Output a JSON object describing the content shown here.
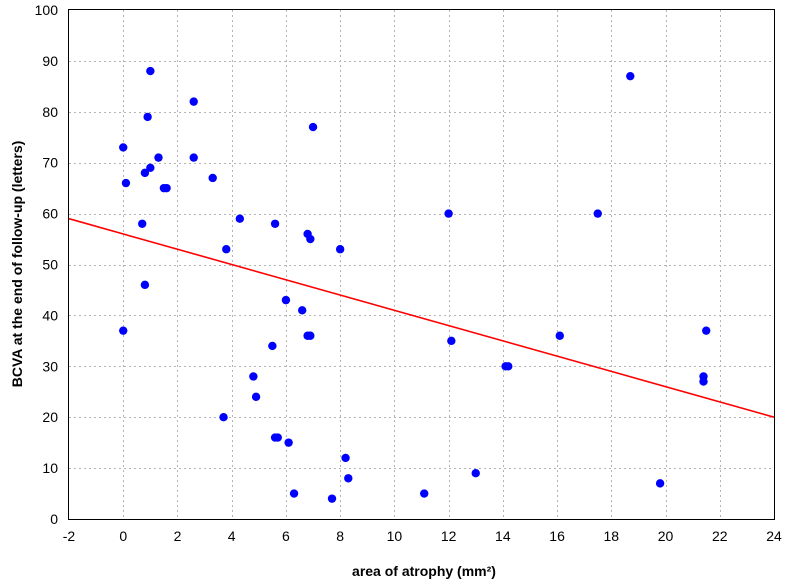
{
  "chart_data": {
    "type": "scatter",
    "xlabel": "area of atrophy (mm²)",
    "ylabel": "BCVA at the end of follow-up (letters)",
    "xlim": [
      -2,
      24
    ],
    "ylim": [
      0,
      100
    ],
    "x_ticks": [
      -2,
      0,
      2,
      4,
      6,
      8,
      10,
      12,
      14,
      16,
      18,
      20,
      22,
      24
    ],
    "y_ticks": [
      0,
      10,
      20,
      30,
      40,
      50,
      60,
      70,
      80,
      90,
      100
    ],
    "grid": true,
    "point_color": "#0000ff",
    "trend_color": "#ff0000",
    "points": [
      {
        "x": 0.0,
        "y": 73
      },
      {
        "x": 0.1,
        "y": 66
      },
      {
        "x": 0.0,
        "y": 37
      },
      {
        "x": 0.7,
        "y": 58
      },
      {
        "x": 0.8,
        "y": 68
      },
      {
        "x": 0.9,
        "y": 79
      },
      {
        "x": 1.0,
        "y": 88
      },
      {
        "x": 1.0,
        "y": 69
      },
      {
        "x": 0.8,
        "y": 46
      },
      {
        "x": 1.3,
        "y": 71
      },
      {
        "x": 1.5,
        "y": 65
      },
      {
        "x": 1.6,
        "y": 65
      },
      {
        "x": 2.6,
        "y": 82
      },
      {
        "x": 2.6,
        "y": 71
      },
      {
        "x": 3.3,
        "y": 67
      },
      {
        "x": 3.8,
        "y": 53
      },
      {
        "x": 4.3,
        "y": 59
      },
      {
        "x": 3.7,
        "y": 20
      },
      {
        "x": 4.8,
        "y": 28
      },
      {
        "x": 4.9,
        "y": 24
      },
      {
        "x": 5.5,
        "y": 34
      },
      {
        "x": 5.6,
        "y": 58
      },
      {
        "x": 5.6,
        "y": 16
      },
      {
        "x": 5.7,
        "y": 16
      },
      {
        "x": 6.0,
        "y": 43
      },
      {
        "x": 6.1,
        "y": 15
      },
      {
        "x": 6.3,
        "y": 5
      },
      {
        "x": 6.6,
        "y": 41
      },
      {
        "x": 6.8,
        "y": 56
      },
      {
        "x": 6.9,
        "y": 55
      },
      {
        "x": 6.9,
        "y": 36
      },
      {
        "x": 6.8,
        "y": 36
      },
      {
        "x": 7.0,
        "y": 77
      },
      {
        "x": 8.0,
        "y": 53
      },
      {
        "x": 7.7,
        "y": 4
      },
      {
        "x": 8.2,
        "y": 12
      },
      {
        "x": 8.3,
        "y": 8
      },
      {
        "x": 11.1,
        "y": 5
      },
      {
        "x": 12.0,
        "y": 60
      },
      {
        "x": 12.1,
        "y": 35
      },
      {
        "x": 13.0,
        "y": 9
      },
      {
        "x": 14.1,
        "y": 30
      },
      {
        "x": 14.2,
        "y": 30
      },
      {
        "x": 16.1,
        "y": 36
      },
      {
        "x": 17.5,
        "y": 60
      },
      {
        "x": 18.7,
        "y": 87
      },
      {
        "x": 19.8,
        "y": 7
      },
      {
        "x": 21.4,
        "y": 28
      },
      {
        "x": 21.4,
        "y": 27
      },
      {
        "x": 21.5,
        "y": 37
      }
    ],
    "trendline": {
      "x": [
        -2,
        24
      ],
      "y": [
        59,
        20
      ]
    }
  }
}
